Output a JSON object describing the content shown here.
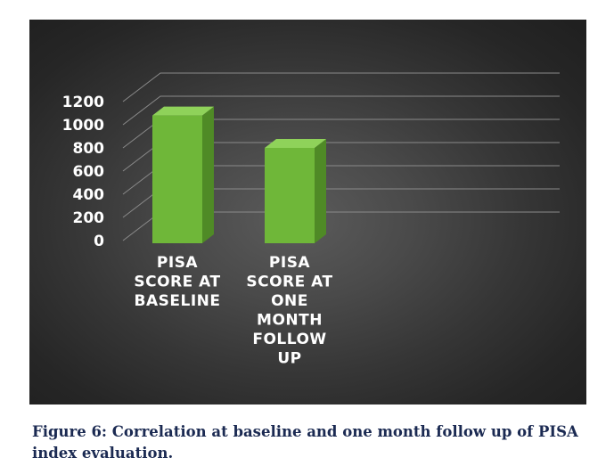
{
  "chart_data": {
    "type": "bar",
    "categories": [
      [
        "PISA",
        "SCORE AT",
        "BASELINE"
      ],
      [
        "PISA",
        "SCORE AT",
        "ONE",
        "MONTH",
        "FOLLOW",
        "UP"
      ]
    ],
    "values": [
      1080,
      800
    ],
    "ylim": [
      0,
      1200
    ],
    "yticks": [
      "0",
      "200",
      "400",
      "600",
      "800",
      "1000",
      "1200"
    ],
    "grid": true,
    "bar_color": "#6fb739",
    "bar_side_color": "#4f8a26",
    "bar_top_color": "#8fd25a"
  },
  "caption": "Figure 6: Correlation at baseline and one month follow up of PISA index evaluation."
}
